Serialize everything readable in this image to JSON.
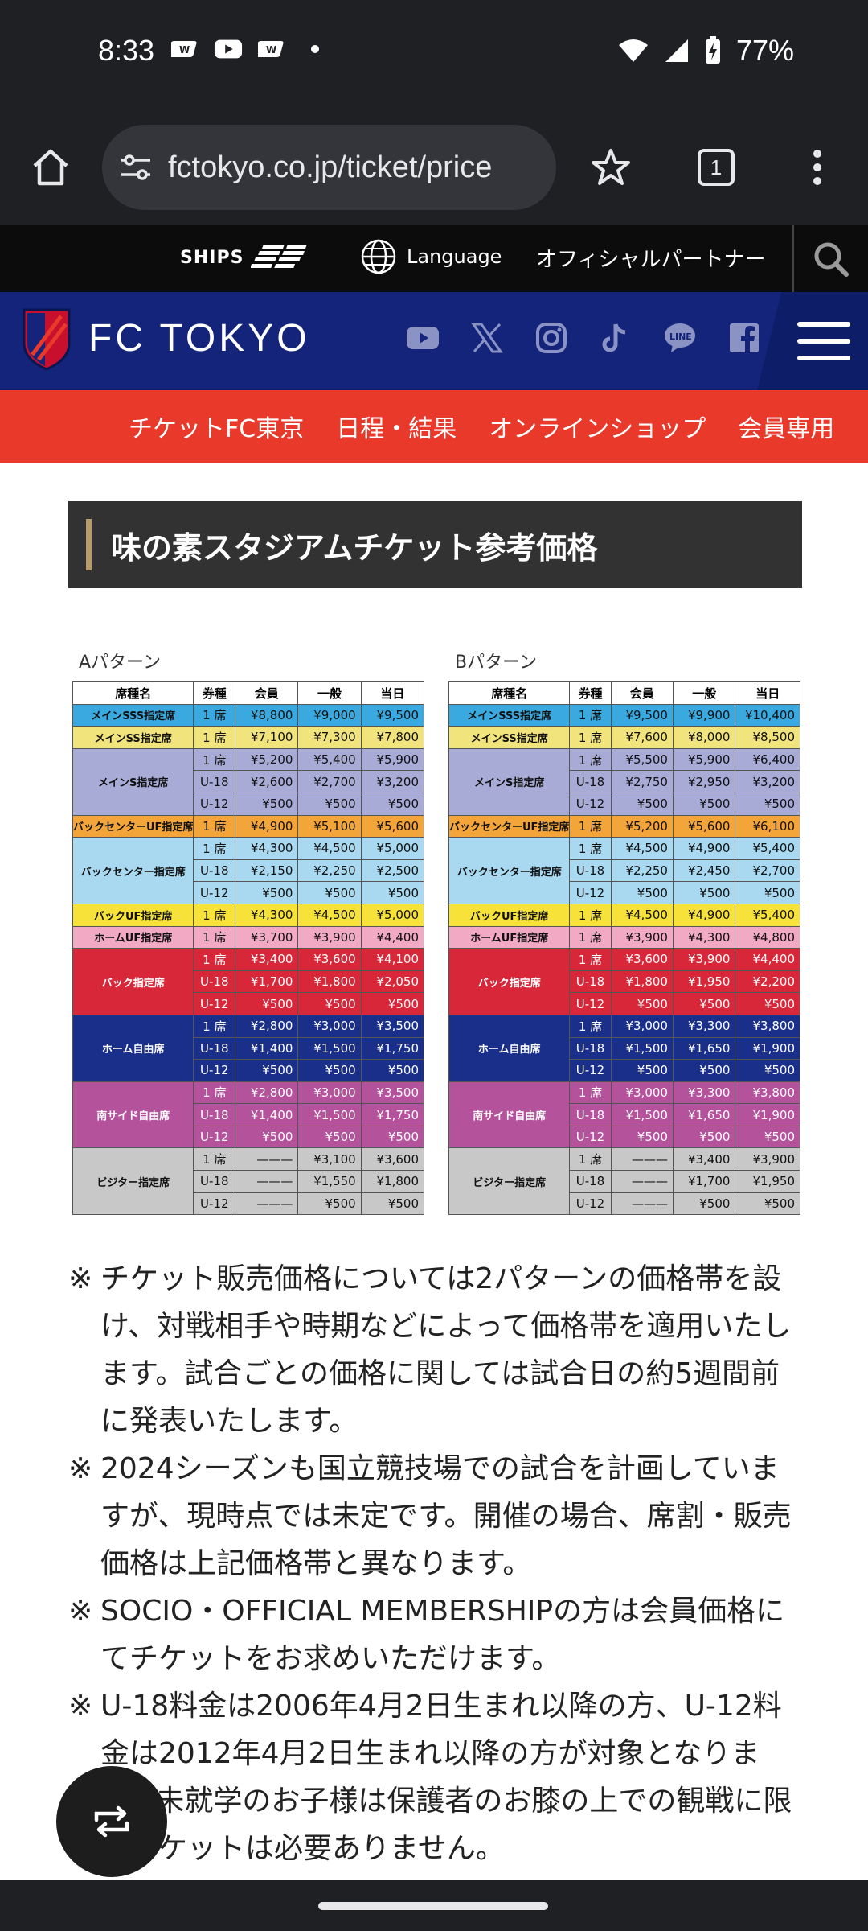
{
  "status": {
    "time": "8:33",
    "battery": "77%"
  },
  "browser": {
    "url": "fctokyo.co.jp/ticket/price",
    "tab_count": "1"
  },
  "site_top": {
    "ships": "SHIPS",
    "language": "Language",
    "partner": "オフィシャルパートナー"
  },
  "brand": {
    "name": "FC TOKYO"
  },
  "nav": [
    "チケットFC東京",
    "日程・結果",
    "オンラインショップ",
    "会員専用"
  ],
  "heading": "味の素スタジアムチケット参考価格",
  "price_tables": [
    {
      "label": "Aパターン",
      "headers": [
        "席種名",
        "券種",
        "会員",
        "一般",
        "当日"
      ],
      "groups": [
        {
          "name": "メインSSS指定席",
          "color": "#39a9df",
          "rows": [
            [
              "1 席",
              "¥8,800",
              "¥9,000",
              "¥9,500"
            ]
          ]
        },
        {
          "name": "メインSS指定席",
          "color": "#f2e47d",
          "rows": [
            [
              "1 席",
              "¥7,100",
              "¥7,300",
              "¥7,800"
            ]
          ]
        },
        {
          "name": "メインS指定席",
          "color": "#a7abd6",
          "rows": [
            [
              "1 席",
              "¥5,200",
              "¥5,400",
              "¥5,900"
            ],
            [
              "U-18",
              "¥2,600",
              "¥2,700",
              "¥3,200"
            ],
            [
              "U-12",
              "¥500",
              "¥500",
              "¥500"
            ]
          ]
        },
        {
          "name": "バックセンターUF指定席",
          "color": "#f3a53a",
          "rows": [
            [
              "1 席",
              "¥4,900",
              "¥5,100",
              "¥5,600"
            ]
          ]
        },
        {
          "name": "バックセンター指定席",
          "color": "#a9d9f0",
          "rows": [
            [
              "1 席",
              "¥4,300",
              "¥4,500",
              "¥5,000"
            ],
            [
              "U-18",
              "¥2,150",
              "¥2,250",
              "¥2,500"
            ],
            [
              "U-12",
              "¥500",
              "¥500",
              "¥500"
            ]
          ]
        },
        {
          "name": "バックUF指定席",
          "color": "#f7e23a",
          "rows": [
            [
              "1 席",
              "¥4,300",
              "¥4,500",
              "¥5,000"
            ]
          ]
        },
        {
          "name": "ホームUF指定席",
          "color": "#f1a9c4",
          "rows": [
            [
              "1 席",
              "¥3,700",
              "¥3,900",
              "¥4,400"
            ]
          ]
        },
        {
          "name": "バック指定席",
          "color": "#d9273a",
          "light": true,
          "rows": [
            [
              "1 席",
              "¥3,400",
              "¥3,600",
              "¥4,100"
            ],
            [
              "U-18",
              "¥1,700",
              "¥1,800",
              "¥2,050"
            ],
            [
              "U-12",
              "¥500",
              "¥500",
              "¥500"
            ]
          ]
        },
        {
          "name": "ホーム自由席",
          "color": "#1a2f8a",
          "light": true,
          "rows": [
            [
              "1 席",
              "¥2,800",
              "¥3,000",
              "¥3,500"
            ],
            [
              "U-18",
              "¥1,400",
              "¥1,500",
              "¥1,750"
            ],
            [
              "U-12",
              "¥500",
              "¥500",
              "¥500"
            ]
          ]
        },
        {
          "name": "南サイド自由席",
          "color": "#b4529c",
          "light": true,
          "rows": [
            [
              "1 席",
              "¥2,800",
              "¥3,000",
              "¥3,500"
            ],
            [
              "U-18",
              "¥1,400",
              "¥1,500",
              "¥1,750"
            ],
            [
              "U-12",
              "¥500",
              "¥500",
              "¥500"
            ]
          ]
        },
        {
          "name": "ビジター指定席",
          "color": "#c8c8c8",
          "rows": [
            [
              "1 席",
              "———",
              "¥3,100",
              "¥3,600"
            ],
            [
              "U-18",
              "———",
              "¥1,550",
              "¥1,800"
            ],
            [
              "U-12",
              "———",
              "¥500",
              "¥500"
            ]
          ]
        }
      ]
    },
    {
      "label": "Bパターン",
      "headers": [
        "席種名",
        "券種",
        "会員",
        "一般",
        "当日"
      ],
      "groups": [
        {
          "name": "メインSSS指定席",
          "color": "#39a9df",
          "rows": [
            [
              "1 席",
              "¥9,500",
              "¥9,900",
              "¥10,400"
            ]
          ]
        },
        {
          "name": "メインSS指定席",
          "color": "#f2e47d",
          "rows": [
            [
              "1 席",
              "¥7,600",
              "¥8,000",
              "¥8,500"
            ]
          ]
        },
        {
          "name": "メインS指定席",
          "color": "#a7abd6",
          "rows": [
            [
              "1 席",
              "¥5,500",
              "¥5,900",
              "¥6,400"
            ],
            [
              "U-18",
              "¥2,750",
              "¥2,950",
              "¥3,200"
            ],
            [
              "U-12",
              "¥500",
              "¥500",
              "¥500"
            ]
          ]
        },
        {
          "name": "バックセンターUF指定席",
          "color": "#f3a53a",
          "rows": [
            [
              "1 席",
              "¥5,200",
              "¥5,600",
              "¥6,100"
            ]
          ]
        },
        {
          "name": "バックセンター指定席",
          "color": "#a9d9f0",
          "rows": [
            [
              "1 席",
              "¥4,500",
              "¥4,900",
              "¥5,400"
            ],
            [
              "U-18",
              "¥2,250",
              "¥2,450",
              "¥2,700"
            ],
            [
              "U-12",
              "¥500",
              "¥500",
              "¥500"
            ]
          ]
        },
        {
          "name": "バックUF指定席",
          "color": "#f7e23a",
          "rows": [
            [
              "1 席",
              "¥4,500",
              "¥4,900",
              "¥5,400"
            ]
          ]
        },
        {
          "name": "ホームUF指定席",
          "color": "#f1a9c4",
          "rows": [
            [
              "1 席",
              "¥3,900",
              "¥4,300",
              "¥4,800"
            ]
          ]
        },
        {
          "name": "バック指定席",
          "color": "#d9273a",
          "light": true,
          "rows": [
            [
              "1 席",
              "¥3,600",
              "¥3,900",
              "¥4,400"
            ],
            [
              "U-18",
              "¥1,800",
              "¥1,950",
              "¥2,200"
            ],
            [
              "U-12",
              "¥500",
              "¥500",
              "¥500"
            ]
          ]
        },
        {
          "name": "ホーム自由席",
          "color": "#1a2f8a",
          "light": true,
          "rows": [
            [
              "1 席",
              "¥3,000",
              "¥3,300",
              "¥3,800"
            ],
            [
              "U-18",
              "¥1,500",
              "¥1,650",
              "¥1,900"
            ],
            [
              "U-12",
              "¥500",
              "¥500",
              "¥500"
            ]
          ]
        },
        {
          "name": "南サイド自由席",
          "color": "#b4529c",
          "light": true,
          "rows": [
            [
              "1 席",
              "¥3,000",
              "¥3,300",
              "¥3,800"
            ],
            [
              "U-18",
              "¥1,500",
              "¥1,650",
              "¥1,900"
            ],
            [
              "U-12",
              "¥500",
              "¥500",
              "¥500"
            ]
          ]
        },
        {
          "name": "ビジター指定席",
          "color": "#c8c8c8",
          "rows": [
            [
              "1 席",
              "———",
              "¥3,400",
              "¥3,900"
            ],
            [
              "U-18",
              "———",
              "¥1,700",
              "¥1,950"
            ],
            [
              "U-12",
              "———",
              "¥500",
              "¥500"
            ]
          ]
        }
      ]
    }
  ],
  "notes": [
    {
      "mark": "※",
      "text": "チケット販売価格については2パターンの価格帯を設け、対戦相手や時期などによって価格帯を適用いたします。試合ごとの価格に関しては試合日の約5週間前に発表いたします。"
    },
    {
      "mark": "※",
      "text": "2024シーズンも国立競技場での試合を計画していますが、現時点では未定です。開催の場合、席割・販売価格は上記価格帯と異なります。"
    },
    {
      "mark": "※",
      "text": "SOCIO・OFFICIAL MEMBERSHIPの方は会員価格にてチケットをお求めいただけます。"
    },
    {
      "mark": "※",
      "text": "U-18料金は2006年4月2日生まれ以降の方、U-12料金は2012年4月2日生まれ以降の方が対象となります。未就学のお子様は保護者のお膝の上での観戦に限りチケットは必要ありません。"
    }
  ]
}
